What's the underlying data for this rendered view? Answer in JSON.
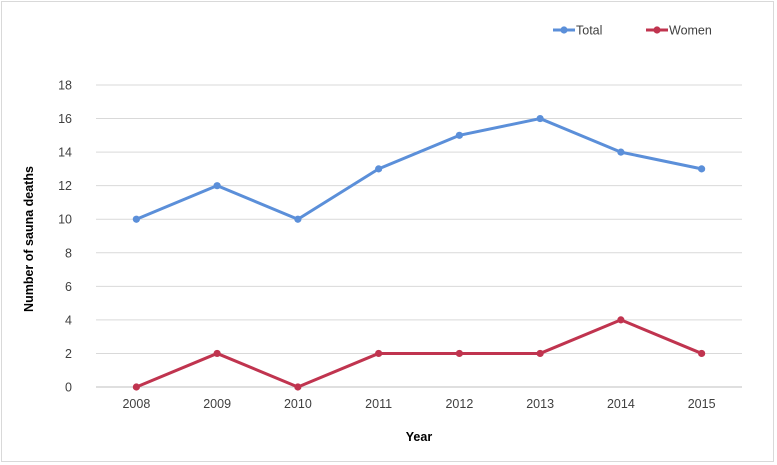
{
  "chart_data": {
    "type": "line",
    "title": "",
    "xlabel": "Year",
    "ylabel": "Number of sauna deaths",
    "categories": [
      "2008",
      "2009",
      "2010",
      "2011",
      "2012",
      "2013",
      "2014",
      "2015"
    ],
    "yticks": [
      "0",
      "2",
      "4",
      "6",
      "8",
      "10",
      "12",
      "14",
      "16",
      "18"
    ],
    "ylim": [
      0,
      18
    ],
    "grid": true,
    "legend_position": "top-right",
    "series": [
      {
        "name": "Total",
        "color": "#5b8fd9",
        "values": [
          10,
          12,
          10,
          13,
          15,
          16,
          14,
          13
        ]
      },
      {
        "name": "Women",
        "color": "#c0344f",
        "values": [
          0,
          2,
          0,
          2,
          2,
          2,
          4,
          2
        ]
      }
    ]
  }
}
